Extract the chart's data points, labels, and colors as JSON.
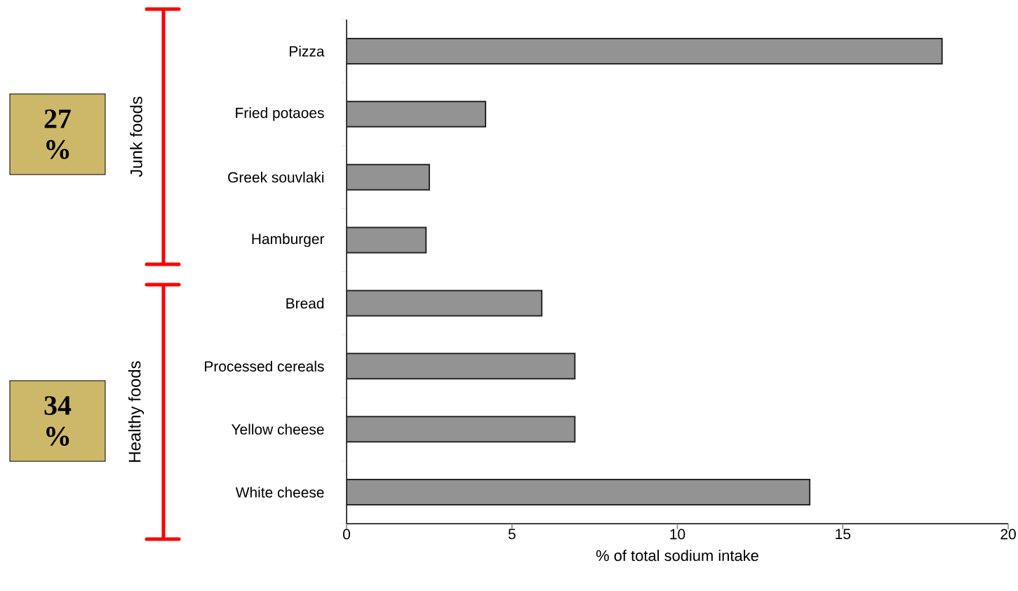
{
  "chart_data": {
    "type": "bar",
    "orientation": "horizontal",
    "xlabel": "% of total sodium intake",
    "categories": [
      "Pizza",
      "Fried potaoes",
      "Greek souvlaki",
      "Hamburger",
      "Bread",
      "Processed cereals",
      "Yellow cheese",
      "White cheese"
    ],
    "values": [
      18.0,
      4.2,
      2.5,
      2.4,
      5.9,
      6.9,
      6.9,
      14.0
    ],
    "color": "#939393",
    "xlim": [
      0,
      20
    ],
    "xticks": [
      0,
      5,
      10,
      15,
      20
    ],
    "annotations": [
      "Junk foods",
      "27 %",
      "Healthy foods",
      "34 %"
    ],
    "grid": false
  }
}
